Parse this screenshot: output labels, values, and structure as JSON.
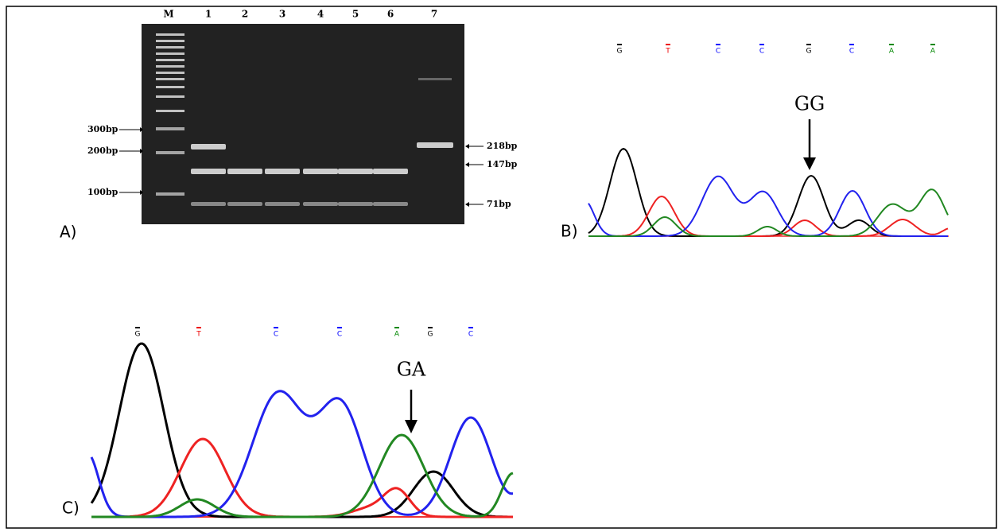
{
  "panel_a": {
    "label": "A)",
    "lanes": [
      "M",
      "1",
      "2",
      "3",
      "4",
      "5",
      "6",
      "7"
    ],
    "left_markers": [
      "300bp",
      "200bp",
      "100bp"
    ],
    "right_markers": [
      "218bp",
      "147bp",
      "71bp"
    ]
  },
  "panel_b": {
    "label": "B)",
    "bases": [
      "G",
      "T",
      "C",
      "C",
      "G",
      "C",
      "A",
      "A"
    ],
    "genotype": "GG"
  },
  "panel_c": {
    "label": "C)",
    "bases": [
      "G",
      "T",
      "C",
      "C",
      "A",
      "G",
      "C"
    ],
    "genotype": "GA"
  }
}
